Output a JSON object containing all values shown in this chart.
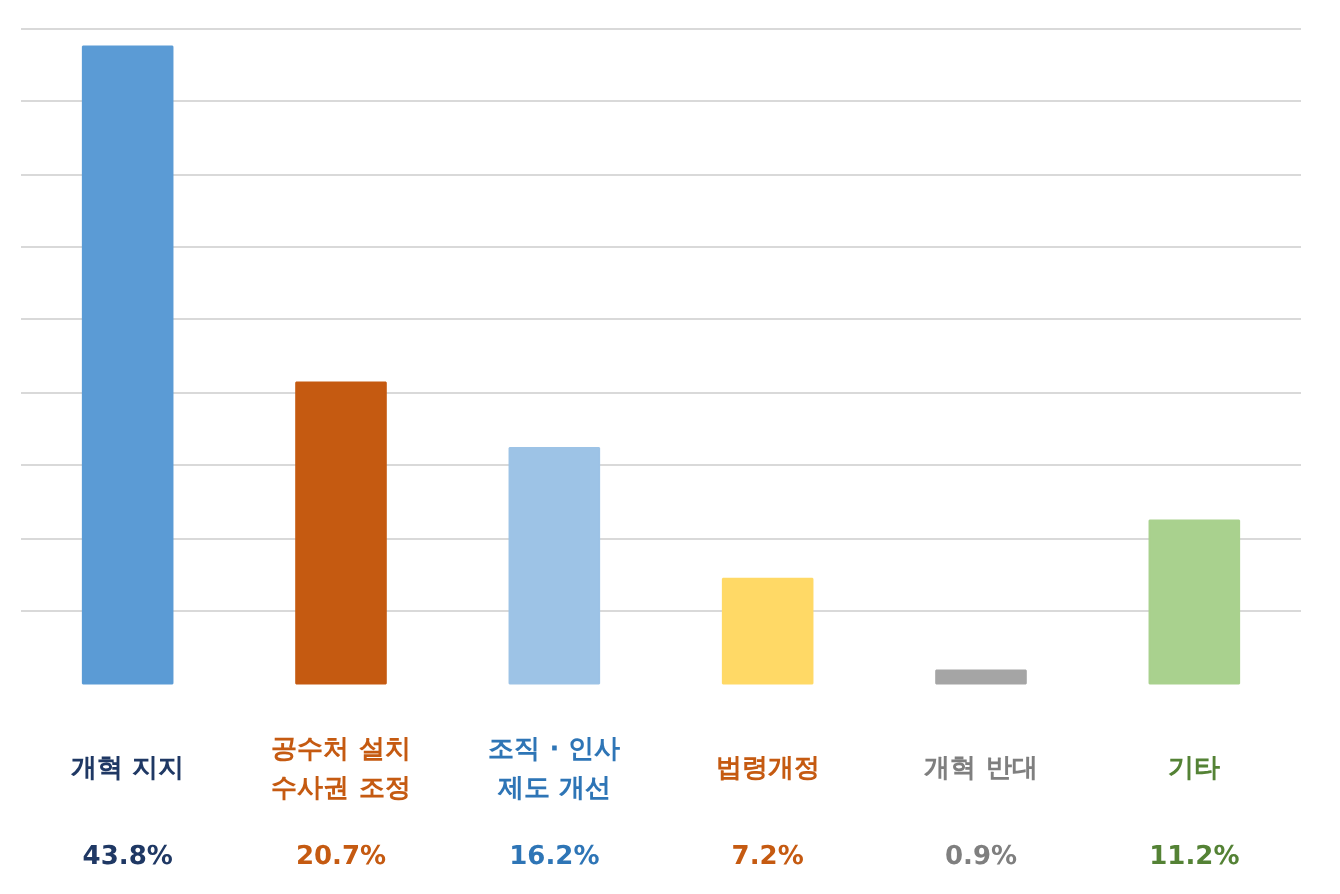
{
  "chart_data": {
    "type": "bar",
    "categories": [
      "개혁 지지",
      "공수처 설치\n수사권 조정",
      "조직 · 인사\n제도 개선",
      "법령개정",
      "개혁 반대",
      "기타"
    ],
    "values": [
      43.8,
      20.7,
      16.2,
      7.2,
      0.9,
      11.2
    ],
    "colors": [
      "#5b9bd5",
      "#c55a11",
      "#9dc3e6",
      "#ffd966",
      "#a5a5a5",
      "#a9d18e"
    ],
    "value_labels": [
      "43.8%",
      "20.7%",
      "16.2%",
      "7.2%",
      "0.9%",
      "11.2%"
    ],
    "yticks": [
      {
        "value": 5,
        "label": null
      },
      {
        "value": 10,
        "label": null
      },
      {
        "value": 15,
        "label": null
      },
      {
        "value": 20,
        "label": null
      },
      {
        "value": 25,
        "label": null
      },
      {
        "value": 30,
        "label": null
      },
      {
        "value": 35,
        "label": null
      },
      {
        "value": 40,
        "label": null
      },
      {
        "value": 45,
        "label": null
      }
    ],
    "grid": "y"
  }
}
